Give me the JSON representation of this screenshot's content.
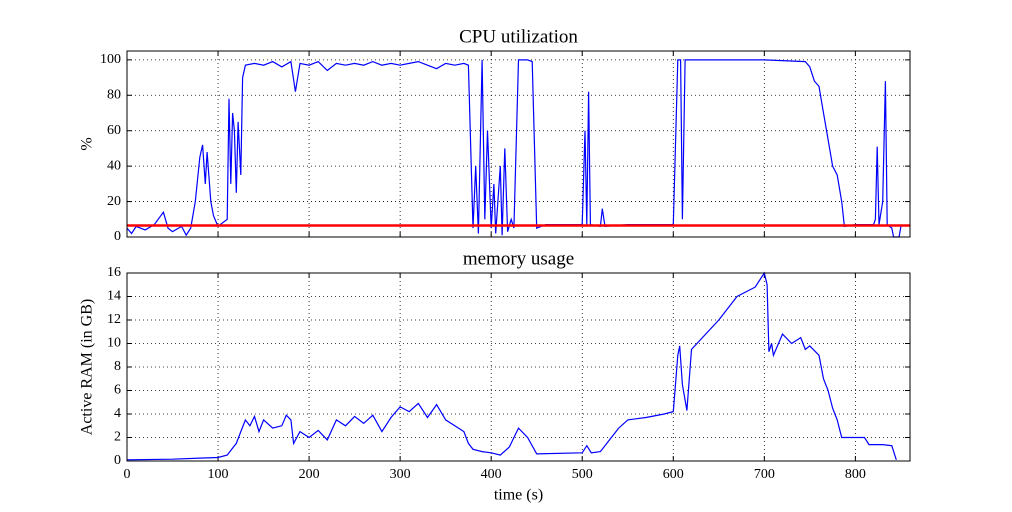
{
  "chart_data": [
    {
      "type": "line",
      "title": "CPU utilization",
      "y_label": "%",
      "color": "#0000ff",
      "x": [
        0,
        5,
        10,
        20,
        30,
        40,
        45,
        50,
        60,
        65,
        70,
        75,
        80,
        83,
        86,
        88,
        92,
        95,
        100,
        105,
        110,
        112,
        114,
        116,
        118,
        120,
        122,
        125,
        127,
        130,
        140,
        150,
        160,
        170,
        180,
        185,
        190,
        200,
        210,
        220,
        230,
        240,
        250,
        260,
        270,
        280,
        290,
        300,
        310,
        320,
        330,
        340,
        350,
        360,
        370,
        375,
        380,
        383,
        386,
        390,
        393,
        396,
        400,
        403,
        405,
        410,
        412,
        415,
        418,
        422,
        425,
        430,
        440,
        445,
        450,
        460,
        500,
        503,
        505,
        507,
        509,
        520,
        522,
        525,
        550,
        600,
        605,
        608,
        610,
        613,
        650,
        700,
        745,
        750,
        755,
        760,
        765,
        770,
        775,
        780,
        785,
        788,
        800,
        820,
        822,
        824,
        826,
        830,
        833,
        835,
        840,
        842,
        848,
        850
      ],
      "values": [
        5,
        2,
        6,
        4,
        7,
        14,
        5,
        3,
        6,
        1,
        5,
        20,
        45,
        52,
        30,
        48,
        20,
        12,
        6,
        8,
        10,
        78,
        30,
        70,
        60,
        25,
        65,
        35,
        90,
        97,
        98,
        97,
        99,
        96,
        99,
        82,
        98,
        97,
        99,
        94,
        98,
        97,
        98,
        97,
        99,
        97,
        98,
        97,
        98,
        99,
        97,
        95,
        98,
        97,
        98,
        97,
        5,
        40,
        2,
        100,
        10,
        60,
        5,
        30,
        2,
        40,
        1,
        50,
        3,
        10,
        5,
        100,
        100,
        99,
        5,
        7,
        7,
        60,
        7,
        82,
        7,
        6,
        16,
        6,
        7,
        7,
        100,
        100,
        10,
        100,
        100,
        100,
        99,
        96,
        88,
        85,
        70,
        55,
        40,
        35,
        20,
        6,
        7,
        7,
        10,
        51,
        7,
        20,
        88,
        7,
        5,
        0,
        0,
        6
      ],
      "hline": {
        "value": 6.5,
        "color": "#ff0000"
      },
      "xlim": [
        0,
        860
      ],
      "xticks": [
        0,
        100,
        200,
        300,
        400,
        500,
        600,
        700,
        800
      ],
      "show_xtick_labels": false,
      "ylim": [
        0,
        105
      ],
      "yticks": [
        0,
        20,
        40,
        60,
        80,
        100
      ],
      "grid": true
    },
    {
      "type": "line",
      "title": "memory usage",
      "y_label": "Active RAM (in GB)",
      "x_label": "time (s)",
      "color": "#0000ff",
      "x": [
        0,
        50,
        80,
        100,
        110,
        115,
        120,
        125,
        130,
        135,
        140,
        145,
        150,
        160,
        170,
        175,
        180,
        183,
        190,
        200,
        210,
        220,
        230,
        240,
        250,
        260,
        270,
        280,
        290,
        300,
        310,
        320,
        330,
        340,
        350,
        360,
        370,
        375,
        380,
        390,
        400,
        410,
        420,
        430,
        440,
        450,
        500,
        505,
        510,
        520,
        530,
        540,
        550,
        570,
        590,
        600,
        605,
        607,
        610,
        615,
        620,
        650,
        670,
        690,
        700,
        703,
        705,
        708,
        710,
        720,
        730,
        740,
        745,
        750,
        760,
        765,
        770,
        775,
        780,
        785,
        800,
        810,
        815,
        830,
        840,
        845
      ],
      "values": [
        0.1,
        0.15,
        0.25,
        0.3,
        0.5,
        1,
        1.5,
        2.5,
        3.5,
        3,
        3.8,
        2.5,
        3.5,
        2.8,
        3,
        3.9,
        3.5,
        1.5,
        2.5,
        2,
        2.6,
        1.8,
        3.5,
        3,
        3.8,
        3.2,
        3.9,
        2.5,
        3.7,
        4.6,
        4.2,
        4.9,
        3.7,
        4.8,
        3.5,
        3,
        2.5,
        1.5,
        1,
        0.8,
        0.7,
        0.5,
        1.2,
        2.8,
        2,
        0.6,
        0.7,
        1.3,
        0.7,
        0.8,
        1.8,
        2.8,
        3.5,
        3.7,
        4,
        4.2,
        9,
        9.8,
        6.5,
        4.3,
        9.5,
        12,
        14,
        14.8,
        16,
        15,
        9.3,
        10,
        9,
        10.8,
        10,
        10.5,
        9.5,
        9.8,
        9,
        7,
        6,
        4.5,
        3.5,
        2,
        2,
        2,
        1.4,
        1.4,
        1.3,
        0.1
      ],
      "xlim": [
        0,
        860
      ],
      "xticks": [
        0,
        100,
        200,
        300,
        400,
        500,
        600,
        700,
        800
      ],
      "show_xtick_labels": true,
      "ylim": [
        0,
        16
      ],
      "yticks": [
        0,
        2,
        4,
        6,
        8,
        10,
        12,
        14,
        16
      ],
      "grid": true
    }
  ]
}
